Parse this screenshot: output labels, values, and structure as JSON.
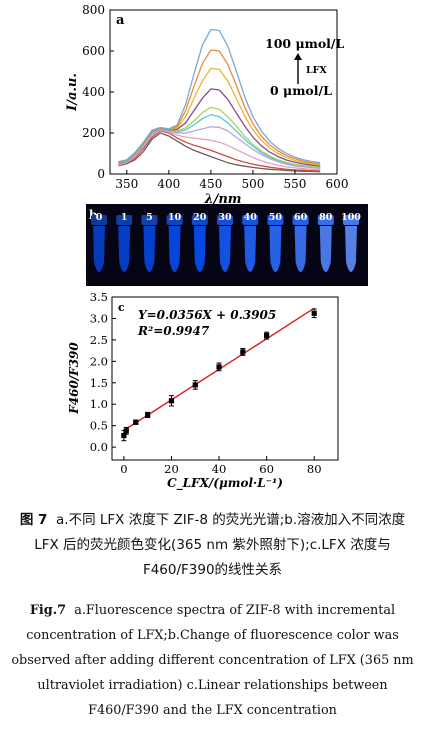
{
  "chart_data": [
    {
      "panel": "a",
      "type": "line",
      "ylabel": "I/a.u.",
      "xlabel": "λ/nm",
      "xlim": [
        330,
        600
      ],
      "ylim": [
        0,
        800
      ],
      "xticks": [
        350,
        400,
        450,
        500,
        550,
        600
      ],
      "yticks": [
        0,
        200,
        400,
        600,
        800
      ],
      "annotation_top": "100 μmol/L",
      "annotation_arrow": "LFX",
      "annotation_bottom": "0 μmol/L",
      "x": [
        340,
        350,
        360,
        370,
        380,
        390,
        400,
        410,
        420,
        430,
        440,
        450,
        460,
        470,
        480,
        490,
        500,
        510,
        520,
        530,
        540,
        550,
        560,
        570,
        580
      ],
      "series": [
        {
          "color": "#6a5e54",
          "values": [
            40,
            50,
            70,
            110,
            170,
            200,
            185,
            160,
            135,
            115,
            100,
            85,
            70,
            55,
            45,
            38,
            32,
            27,
            23,
            20,
            17,
            15,
            13,
            12,
            11
          ]
        },
        {
          "color": "#c9503c",
          "values": [
            42,
            53,
            78,
            125,
            180,
            210,
            200,
            175,
            155,
            140,
            128,
            115,
            100,
            85,
            70,
            58,
            48,
            40,
            33,
            28,
            23,
            20,
            18,
            16,
            15
          ]
        },
        {
          "color": "#e8a0c8",
          "values": [
            45,
            56,
            85,
            135,
            190,
            215,
            205,
            190,
            180,
            175,
            170,
            165,
            155,
            140,
            120,
            100,
            80,
            65,
            52,
            42,
            35,
            30,
            26,
            23,
            21
          ]
        },
        {
          "color": "#b9a4dc",
          "values": [
            48,
            58,
            90,
            140,
            195,
            218,
            210,
            200,
            200,
            210,
            220,
            230,
            228,
            210,
            180,
            150,
            120,
            95,
            75,
            60,
            48,
            40,
            35,
            31,
            28
          ]
        },
        {
          "color": "#5bc8d8",
          "values": [
            50,
            60,
            95,
            145,
            200,
            220,
            212,
            205,
            215,
            240,
            270,
            290,
            280,
            250,
            210,
            170,
            135,
            105,
            82,
            65,
            52,
            44,
            38,
            34,
            31
          ]
        },
        {
          "color": "#a7d35a",
          "values": [
            52,
            62,
            98,
            148,
            205,
            222,
            215,
            210,
            225,
            260,
            300,
            325,
            315,
            280,
            235,
            185,
            145,
            112,
            88,
            70,
            56,
            47,
            41,
            36,
            33
          ]
        },
        {
          "color": "#8b4a8f",
          "values": [
            54,
            64,
            100,
            150,
            208,
            224,
            216,
            218,
            250,
            310,
            370,
            415,
            410,
            365,
            300,
            235,
            180,
            138,
            107,
            85,
            68,
            57,
            49,
            43,
            39
          ]
        },
        {
          "color": "#e3b735",
          "values": [
            56,
            66,
            102,
            152,
            210,
            225,
            218,
            225,
            280,
            370,
            455,
            515,
            510,
            455,
            370,
            285,
            215,
            165,
            127,
            100,
            80,
            66,
            56,
            49,
            44
          ]
        },
        {
          "color": "#e98b3a",
          "values": [
            58,
            68,
            104,
            154,
            212,
            226,
            219,
            232,
            310,
            430,
            540,
            605,
            600,
            535,
            435,
            330,
            245,
            185,
            142,
            112,
            90,
            74,
            62,
            54,
            49
          ]
        },
        {
          "color": "#7ba8d2",
          "values": [
            60,
            70,
            106,
            156,
            214,
            227,
            220,
            240,
            340,
            490,
            630,
            705,
            700,
            625,
            505,
            380,
            280,
            210,
            160,
            125,
            100,
            82,
            70,
            61,
            55
          ]
        }
      ]
    },
    {
      "panel": "b",
      "type": "image",
      "tube_labels": [
        "0",
        "1",
        "5",
        "10",
        "20",
        "30",
        "40",
        "50",
        "60",
        "80",
        "100"
      ],
      "tube_brightness": [
        0.35,
        0.4,
        0.45,
        0.5,
        0.55,
        0.62,
        0.68,
        0.74,
        0.8,
        0.88,
        0.95
      ]
    },
    {
      "panel": "c",
      "type": "scatter",
      "ylabel": "F460/F390",
      "xlabel": "C_LFX/(μmol·L⁻¹)",
      "xlim": [
        -5,
        90
      ],
      "ylim": [
        -0.3,
        3.5
      ],
      "xticks": [
        0,
        20,
        40,
        60,
        80
      ],
      "yticks": [
        0.0,
        0.5,
        1.0,
        1.5,
        2.0,
        2.5,
        3.0,
        3.5
      ],
      "equation": "Y=0.0356X + 0.3905",
      "r2": "R²=0.9947",
      "fit": {
        "slope": 0.0356,
        "intercept": 0.3905,
        "x_range": [
          0,
          80
        ],
        "color": "#d62020"
      },
      "x": [
        0,
        1,
        5,
        10,
        20,
        30,
        40,
        50,
        60,
        80
      ],
      "y": [
        0.27,
        0.38,
        0.58,
        0.75,
        1.08,
        1.45,
        1.87,
        2.22,
        2.6,
        3.12
      ],
      "yerr": [
        0.12,
        0.08,
        0.05,
        0.06,
        0.12,
        0.1,
        0.09,
        0.08,
        0.08,
        0.1
      ]
    }
  ],
  "caption_cn": {
    "label": "图 7",
    "text": "a.不同 LFX 浓度下 ZIF-8 的荧光光谱;b.溶液加入不同浓度 LFX 后的荧光颜色变化(365 nm 紫外照射下);c.LFX 浓度与 F460/F390的线性关系"
  },
  "caption_en": {
    "label": "Fig.7",
    "text": "a.Fluorescence spectra of ZIF-8 with incremental concentration of LFX;b.Change of fluorescence color was observed after adding different concentration of LFX (365 nm ultraviolet irradiation) c.Linear relationships between F460/F390 and the LFX concentration"
  }
}
